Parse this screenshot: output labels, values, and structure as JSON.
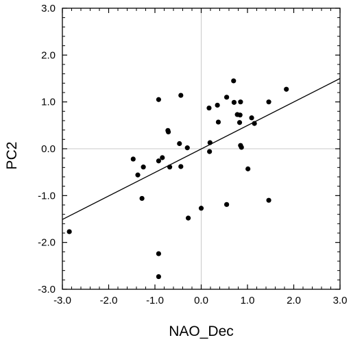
{
  "chart_data": {
    "type": "scatter",
    "xlabel": "NAO_Dec",
    "ylabel": "PC2",
    "xlim": [
      -3.0,
      3.0
    ],
    "ylim": [
      -3.0,
      3.0
    ],
    "x_ticks": [
      -3.0,
      -2.0,
      -1.0,
      0.0,
      1.0,
      2.0,
      3.0
    ],
    "x_tick_labels": [
      "-3.0",
      "-2.0",
      "-1.0",
      "0.0",
      "1.0",
      "2.0",
      "3.0"
    ],
    "y_ticks": [
      -3.0,
      -2.0,
      -1.0,
      0.0,
      1.0,
      2.0,
      3.0
    ],
    "y_tick_labels": [
      "-3.0",
      "-2.0",
      "-1.0",
      "0.0",
      "1.0",
      "2.0",
      "3.0"
    ],
    "grid": false,
    "reference_lines": {
      "x": 0.0,
      "y": 0.0,
      "color": "#c8c8c8"
    },
    "point_color": "#000000",
    "points": [
      {
        "x": -2.85,
        "y": -1.77
      },
      {
        "x": -1.47,
        "y": -0.22
      },
      {
        "x": -1.37,
        "y": -0.56
      },
      {
        "x": -1.25,
        "y": -0.39
      },
      {
        "x": -1.28,
        "y": -1.06
      },
      {
        "x": -0.92,
        "y": 1.05
      },
      {
        "x": -0.92,
        "y": -0.26
      },
      {
        "x": -0.92,
        "y": -2.24
      },
      {
        "x": -0.92,
        "y": -2.73
      },
      {
        "x": -0.84,
        "y": -0.19
      },
      {
        "x": -0.72,
        "y": 0.39
      },
      {
        "x": -0.71,
        "y": 0.36
      },
      {
        "x": -0.68,
        "y": -0.39
      },
      {
        "x": -0.47,
        "y": 0.11
      },
      {
        "x": -0.44,
        "y": 1.14
      },
      {
        "x": -0.44,
        "y": -0.38
      },
      {
        "x": -0.3,
        "y": 0.02
      },
      {
        "x": -0.28,
        "y": -1.48
      },
      {
        "x": 0.0,
        "y": -1.27
      },
      {
        "x": 0.17,
        "y": 0.87
      },
      {
        "x": 0.19,
        "y": 0.13
      },
      {
        "x": 0.18,
        "y": -0.06
      },
      {
        "x": 0.35,
        "y": 0.93
      },
      {
        "x": 0.37,
        "y": 0.57
      },
      {
        "x": 0.55,
        "y": 1.1
      },
      {
        "x": 0.55,
        "y": -1.19
      },
      {
        "x": 0.7,
        "y": 1.45
      },
      {
        "x": 0.71,
        "y": 0.99
      },
      {
        "x": 0.78,
        "y": 0.73
      },
      {
        "x": 0.84,
        "y": 0.72
      },
      {
        "x": 0.83,
        "y": 0.56
      },
      {
        "x": 0.85,
        "y": 1.0
      },
      {
        "x": 0.85,
        "y": 0.07
      },
      {
        "x": 0.87,
        "y": 0.03
      },
      {
        "x": 1.01,
        "y": -0.43
      },
      {
        "x": 1.09,
        "y": 0.66
      },
      {
        "x": 1.15,
        "y": 0.54
      },
      {
        "x": 1.46,
        "y": 1.0
      },
      {
        "x": 1.46,
        "y": -1.1
      },
      {
        "x": 1.84,
        "y": 1.27
      }
    ],
    "regression_line": {
      "x": [
        -3.0,
        3.0
      ],
      "y": [
        -1.51,
        1.5
      ]
    }
  }
}
